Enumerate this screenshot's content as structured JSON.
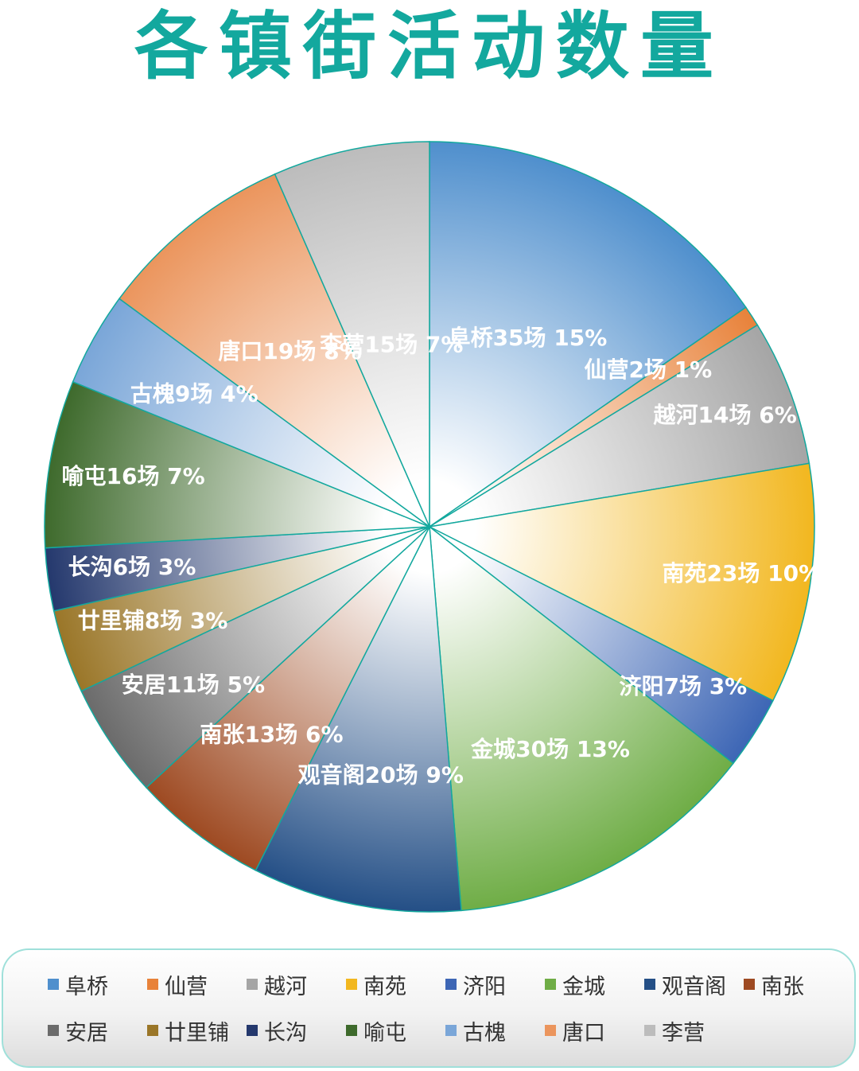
{
  "title": "各镇街活动数量",
  "chart_data": {
    "type": "pie",
    "title": "各镇街活动数量",
    "unit": "场",
    "legend_position": "bottom",
    "slices": [
      {
        "name": "阜桥",
        "value": 35,
        "percent": "15%",
        "label": "阜桥35场 15%",
        "color": "#4f8fcd"
      },
      {
        "name": "仙营",
        "value": 2,
        "percent": "1%",
        "label": "仙营2场 1%",
        "color": "#e8823a"
      },
      {
        "name": "越河",
        "value": 14,
        "percent": "6%",
        "label": "越河14场  6%",
        "color": "#a5a5a5"
      },
      {
        "name": "南苑",
        "value": 23,
        "percent": "10%",
        "label": "南苑23场 10%",
        "color": "#f2b71f"
      },
      {
        "name": "济阳",
        "value": 7,
        "percent": "3%",
        "label": "济阳7场 3%",
        "color": "#3d66b5"
      },
      {
        "name": "金城",
        "value": 30,
        "percent": "13%",
        "label": "金城30场 13%",
        "color": "#6fad46"
      },
      {
        "name": "观音阁",
        "value": 20,
        "percent": "9%",
        "label": "观音阁20场 9%",
        "color": "#244f86"
      },
      {
        "name": "南张",
        "value": 13,
        "percent": "6%",
        "label": "南张13场 6%",
        "color": "#9e4a22"
      },
      {
        "name": "安居",
        "value": 11,
        "percent": "5%",
        "label": "安居11场 5%",
        "color": "#6b6b6b"
      },
      {
        "name": "廿里铺",
        "value": 8,
        "percent": "3%",
        "label": "廿里铺8场 3%",
        "color": "#9a7628"
      },
      {
        "name": "长沟",
        "value": 6,
        "percent": "3%",
        "label": "长沟6场 3%",
        "color": "#24386d"
      },
      {
        "name": "喻屯",
        "value": 16,
        "percent": "7%",
        "label": "喻屯16场 7%",
        "color": "#3e6a2c"
      },
      {
        "name": "古槐",
        "value": 9,
        "percent": "4%",
        "label": "古槐9场 4%",
        "color": "#7aa6d8"
      },
      {
        "name": "唐口",
        "value": 19,
        "percent": "8%",
        "label": "唐口19场 8%",
        "color": "#eb955d"
      },
      {
        "name": "李营",
        "value": 15,
        "percent": "7%",
        "label": "李营15场 7%",
        "color": "#bcbcbc"
      }
    ]
  }
}
